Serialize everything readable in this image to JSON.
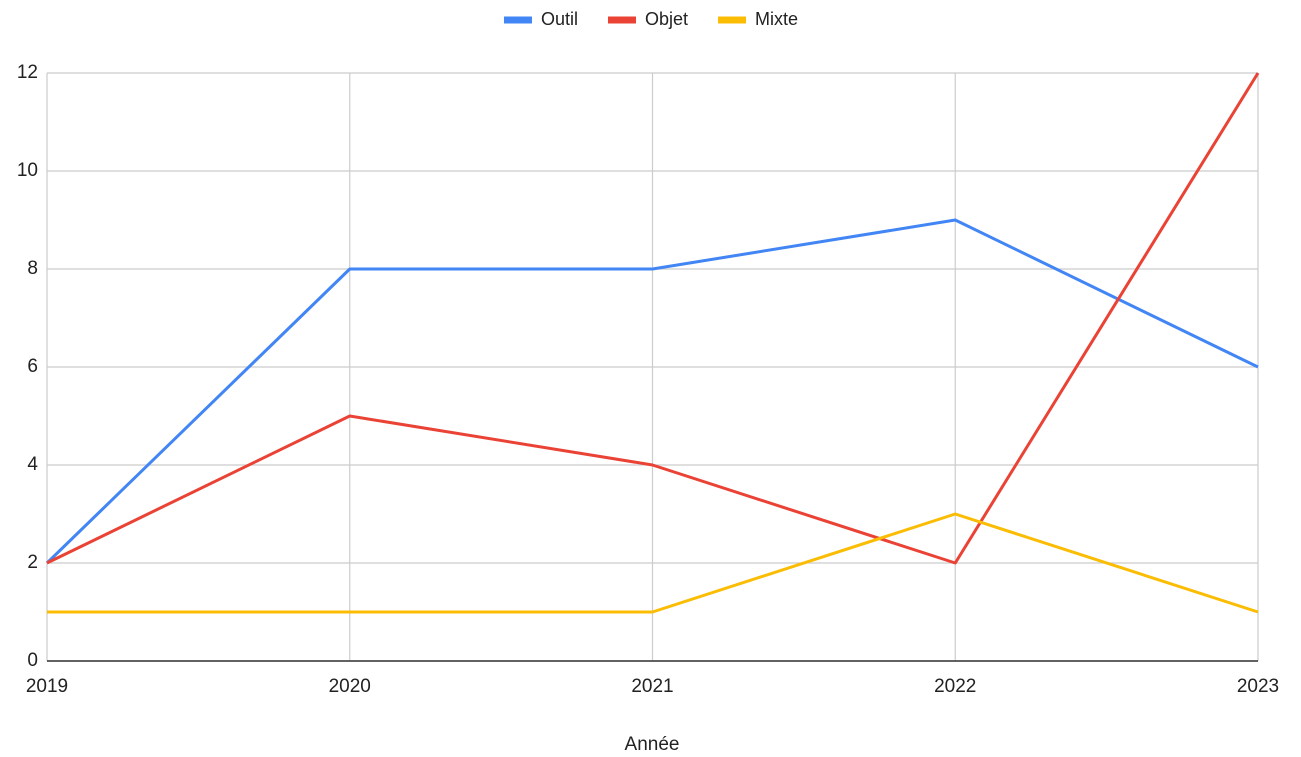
{
  "chart_data": {
    "type": "line",
    "x": [
      2019,
      2020,
      2021,
      2022,
      2023
    ],
    "series": [
      {
        "name": "Outil",
        "color": "#4285f4",
        "values": [
          2,
          8,
          8,
          9,
          6
        ]
      },
      {
        "name": "Objet",
        "color": "#ea4335",
        "values": [
          2,
          5,
          4,
          2,
          12
        ]
      },
      {
        "name": "Mixte",
        "color": "#fbbc04",
        "values": [
          1,
          1,
          1,
          3,
          1
        ]
      }
    ],
    "xlabel": "Année",
    "xlim": [
      2019,
      2023
    ],
    "xticks": [
      2019,
      2020,
      2021,
      2022,
      2023
    ],
    "ylim": [
      0,
      12
    ],
    "yticks": [
      0,
      2,
      4,
      6,
      8,
      10,
      12
    ],
    "grid": true,
    "legend": "top"
  }
}
